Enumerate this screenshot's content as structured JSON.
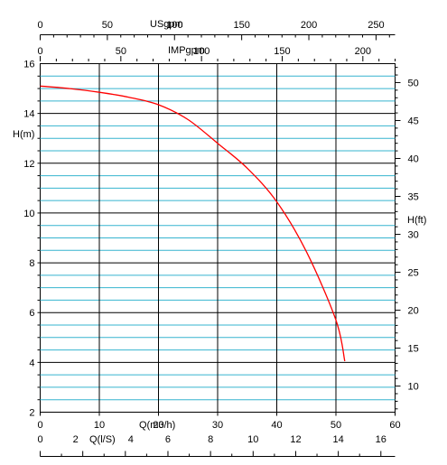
{
  "chart_data": {
    "type": "line",
    "title": "",
    "grid": true,
    "line_color": "#ff0000",
    "major_grid_color": "#000000",
    "minor_grid_color": "#36b4cf",
    "series": [
      {
        "values_x_m3h": [
          0,
          5,
          10,
          15,
          20,
          25,
          30,
          35,
          40,
          45,
          50,
          51.5
        ],
        "values_y_m": [
          15.1,
          15.0,
          14.85,
          14.65,
          14.35,
          13.75,
          12.8,
          11.8,
          10.45,
          8.45,
          5.7,
          4.05
        ]
      }
    ],
    "axes": {
      "x_bottom_q_m3h": {
        "label": "Q(m3/h)",
        "range": [
          0,
          60
        ],
        "ticks": [
          "0",
          "10",
          "20",
          "30",
          "40",
          "50",
          "60"
        ]
      },
      "x_bottom_q_ls": {
        "label": "Q(l/S)",
        "range": [
          0,
          16.67
        ],
        "ticks": [
          "0",
          "2",
          "4",
          "6",
          "8",
          "10",
          "12",
          "14",
          "16"
        ]
      },
      "x_top_usgpm": {
        "label": "USgpm",
        "range": [
          0,
          264.2
        ],
        "ticks": [
          "0",
          "50",
          "100",
          "150",
          "200",
          "250"
        ]
      },
      "x_top_impgpm": {
        "label": "IMPgpm",
        "range": [
          0,
          220
        ],
        "ticks": [
          "0",
          "50",
          "100",
          "150",
          "200"
        ]
      },
      "y_left_h_m": {
        "label": "H(m)",
        "range": [
          2,
          16
        ],
        "ticks": [
          "2",
          "4",
          "6",
          "8",
          "10",
          "12",
          "14",
          "16"
        ]
      },
      "y_right_h_ft": {
        "label": "H(ft)",
        "range": [
          6.56,
          52.49
        ],
        "ticks": [
          "10",
          "15",
          "20",
          "25",
          "30",
          "35",
          "40",
          "45",
          "50"
        ]
      }
    }
  }
}
